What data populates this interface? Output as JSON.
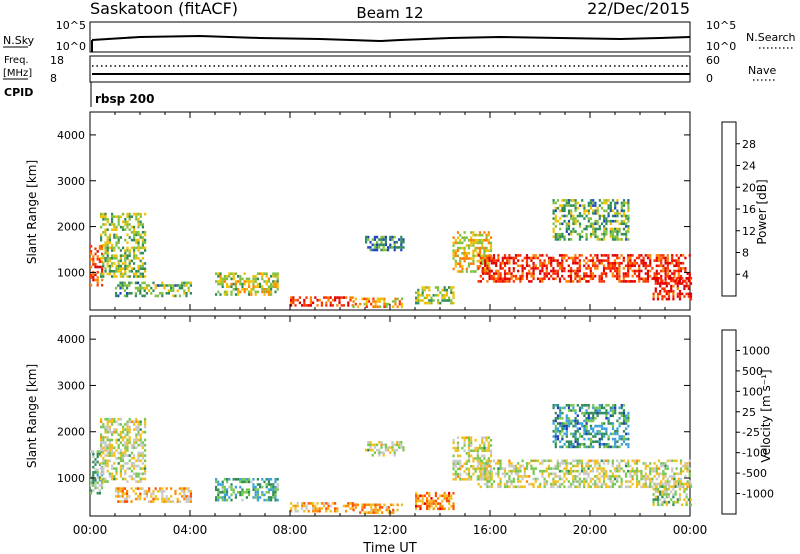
{
  "header": {
    "title": "Saskatoon (fitACF)",
    "beam": "Beam 12",
    "date": "22/Dec/2015"
  },
  "aux_panels": {
    "nsky_label": "N.Sky",
    "nsky_ticks": [
      "10^5",
      "10^0"
    ],
    "nsearch_label": "N.Search",
    "nsearch_ticks": [
      "10^5",
      "10^0"
    ],
    "freq_label": "Freq.",
    "freq_unit": "[MHz]",
    "freq_ticks": [
      "18",
      "8"
    ],
    "nave_label": "Nave",
    "nave_ticks": [
      "60",
      "0"
    ],
    "cpid_label": "CPID",
    "cpid_value": "rbsp 200"
  },
  "chart_data": [
    {
      "type": "heatmap",
      "panel": "power",
      "title": "",
      "ylabel": "Slant Range [km]",
      "ylim": [
        180,
        4500
      ],
      "yticks": [
        1000,
        2000,
        3000,
        4000
      ],
      "xlim": [
        0,
        24
      ],
      "colorbar_label": "Power [dB]",
      "colorbar_ticks": [
        "4",
        "8",
        "12",
        "16",
        "20",
        "24",
        "28"
      ],
      "colorbar_colors": [
        "#0000ff",
        "#1e46be",
        "#2e8b57",
        "#80c040",
        "#f0c000",
        "#ff7f00",
        "#ff3000",
        "#e00000"
      ],
      "regions": [
        {
          "t0": 0.0,
          "t1": 0.5,
          "r0": 700,
          "r1": 1600,
          "level": 0.8
        },
        {
          "t0": 0.4,
          "t1": 2.2,
          "r0": 900,
          "r1": 2300,
          "level": 0.45
        },
        {
          "t0": 1.0,
          "t1": 4.0,
          "r0": 500,
          "r1": 800,
          "level": 0.4
        },
        {
          "t0": 5.0,
          "t1": 7.5,
          "r0": 500,
          "r1": 1000,
          "level": 0.5
        },
        {
          "t0": 8.0,
          "t1": 10.5,
          "r0": 280,
          "r1": 480,
          "level": 0.85
        },
        {
          "t0": 10.5,
          "t1": 12.5,
          "r0": 250,
          "r1": 450,
          "level": 0.6
        },
        {
          "t0": 11.0,
          "t1": 12.5,
          "r0": 1500,
          "r1": 1800,
          "level": 0.3
        },
        {
          "t0": 13.0,
          "t1": 14.5,
          "r0": 350,
          "r1": 700,
          "level": 0.45
        },
        {
          "t0": 14.5,
          "t1": 16.0,
          "r0": 1000,
          "r1": 1900,
          "level": 0.55
        },
        {
          "t0": 15.5,
          "t1": 24.0,
          "r0": 800,
          "r1": 1400,
          "level": 0.85
        },
        {
          "t0": 18.5,
          "t1": 21.5,
          "r0": 1700,
          "r1": 2600,
          "level": 0.4
        },
        {
          "t0": 22.5,
          "t1": 24.0,
          "r0": 400,
          "r1": 900,
          "level": 0.9
        }
      ]
    },
    {
      "type": "heatmap",
      "panel": "velocity",
      "title": "",
      "ylabel": "Slant Range [km]",
      "xlabel": "Time UT",
      "ylim": [
        180,
        4500
      ],
      "yticks": [
        1000,
        2000,
        3000,
        4000
      ],
      "xlim": [
        0,
        24
      ],
      "xticks": [
        "00:00",
        "04:00",
        "08:00",
        "12:00",
        "16:00",
        "20:00",
        "00:00"
      ],
      "colorbar_label": "Velocity [m s⁻¹]",
      "colorbar_ticks": [
        "1000",
        "500",
        "100",
        "25",
        "-25",
        "-100",
        "-500",
        "-1000"
      ],
      "colorbar_colors": [
        "#1e3cb4",
        "#3ca0dc",
        "#2e8b57",
        "#78c850",
        "#c8c8c8",
        "#f0c020",
        "#ff8c00",
        "#ff5000",
        "#e00000"
      ],
      "regions": [
        {
          "t0": 0.0,
          "t1": 0.5,
          "r0": 700,
          "r1": 1600,
          "level": 0.35
        },
        {
          "t0": 0.4,
          "t1": 2.2,
          "r0": 900,
          "r1": 2300,
          "level": 0.5
        },
        {
          "t0": 1.0,
          "t1": 4.0,
          "r0": 500,
          "r1": 800,
          "level": 0.65
        },
        {
          "t0": 5.0,
          "t1": 7.5,
          "r0": 500,
          "r1": 1000,
          "level": 0.3
        },
        {
          "t0": 8.0,
          "t1": 10.5,
          "r0": 280,
          "r1": 480,
          "level": 0.7
        },
        {
          "t0": 10.5,
          "t1": 12.5,
          "r0": 250,
          "r1": 450,
          "level": 0.7
        },
        {
          "t0": 11.0,
          "t1": 12.5,
          "r0": 1500,
          "r1": 1800,
          "level": 0.5
        },
        {
          "t0": 13.0,
          "t1": 14.5,
          "r0": 350,
          "r1": 700,
          "level": 0.75
        },
        {
          "t0": 14.5,
          "t1": 16.0,
          "r0": 1000,
          "r1": 1900,
          "level": 0.5
        },
        {
          "t0": 15.5,
          "t1": 24.0,
          "r0": 800,
          "r1": 1400,
          "level": 0.5
        },
        {
          "t0": 18.5,
          "t1": 21.5,
          "r0": 1700,
          "r1": 2600,
          "level": 0.25
        },
        {
          "t0": 22.5,
          "t1": 24.0,
          "r0": 400,
          "r1": 900,
          "level": 0.45
        }
      ]
    }
  ]
}
